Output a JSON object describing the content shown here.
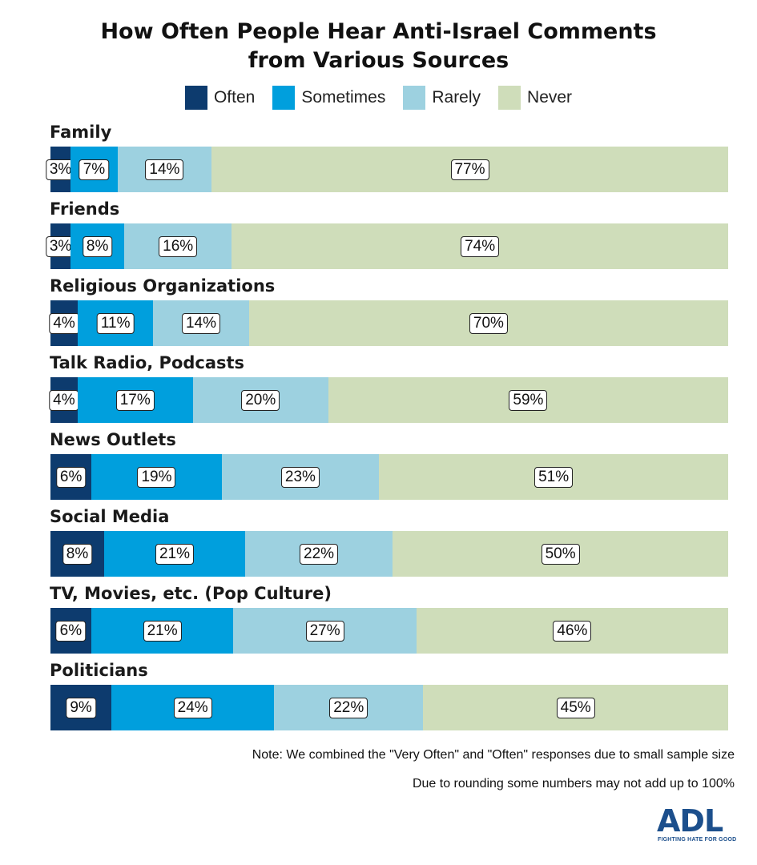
{
  "chart_data": {
    "type": "bar",
    "orientation": "horizontal-stacked-100",
    "title_line1": "How Often People Hear Anti-Israel Comments",
    "title_line2": "from Various Sources",
    "legend_placement": "top-center",
    "series": [
      {
        "name": "Often",
        "color": "#0d3b6e"
      },
      {
        "name": "Sometimes",
        "color": "#009fdd"
      },
      {
        "name": "Rarely",
        "color": "#9dd1e0"
      },
      {
        "name": "Never",
        "color": "#cfddba"
      }
    ],
    "categories": [
      {
        "label": "Family",
        "values": [
          3,
          7,
          14,
          77
        ],
        "labels": [
          "3%",
          "7%",
          "14%",
          "77%"
        ]
      },
      {
        "label": "Friends",
        "values": [
          3,
          8,
          16,
          74
        ],
        "labels": [
          "3%",
          "8%",
          "16%",
          "74%"
        ]
      },
      {
        "label": "Religious Organizations",
        "values": [
          4,
          11,
          14,
          70
        ],
        "labels": [
          "4%",
          "11%",
          "14%",
          "70%"
        ]
      },
      {
        "label": "Talk Radio, Podcasts",
        "values": [
          4,
          17,
          20,
          59
        ],
        "labels": [
          "4%",
          "17%",
          "20%",
          "59%"
        ]
      },
      {
        "label": "News Outlets",
        "values": [
          6,
          19,
          23,
          51
        ],
        "labels": [
          "6%",
          "19%",
          "23%",
          "51%"
        ]
      },
      {
        "label": "Social Media",
        "values": [
          8,
          21,
          22,
          50
        ],
        "labels": [
          "8%",
          "21%",
          "22%",
          "50%"
        ]
      },
      {
        "label": "TV, Movies, etc. (Pop Culture)",
        "values": [
          6,
          21,
          27,
          46
        ],
        "labels": [
          "6%",
          "21%",
          "27%",
          "46%"
        ]
      },
      {
        "label": "Politicians",
        "values": [
          9,
          24,
          22,
          45
        ],
        "labels": [
          "9%",
          "24%",
          "22%",
          "45%"
        ]
      }
    ]
  },
  "notes": {
    "note1": "Note: We combined the \"Very Often\" and \"Often\" responses due to small sample size",
    "note2": "Due to rounding some numbers may not add up to 100%"
  },
  "logo": {
    "word": "ADL",
    "tagline": "FIGHTING HATE FOR GOOD",
    "color": "#1c4f8c"
  }
}
